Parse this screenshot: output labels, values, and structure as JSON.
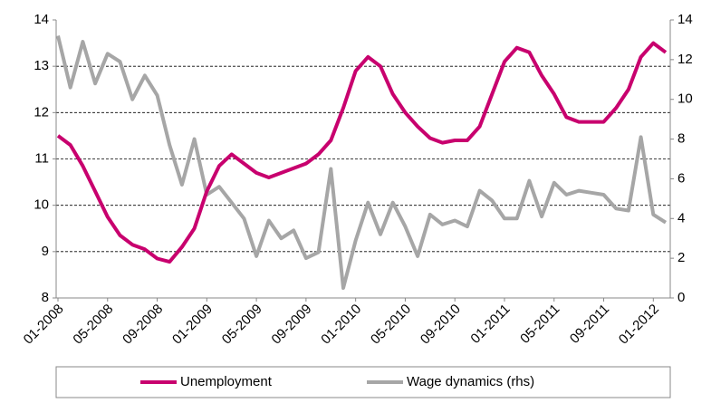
{
  "chart_data": {
    "type": "line",
    "categories": [
      "01-2008",
      null,
      null,
      null,
      "05-2008",
      null,
      null,
      null,
      "09-2008",
      null,
      null,
      null,
      "01-2009",
      null,
      null,
      null,
      "05-2009",
      null,
      null,
      null,
      "09-2009",
      null,
      null,
      null,
      "01-2010",
      null,
      null,
      null,
      "05-2010",
      null,
      null,
      null,
      "09-2010",
      null,
      null,
      null,
      "01-2011",
      null,
      null,
      null,
      "05-2011",
      null,
      null,
      null,
      "09-2011",
      null,
      null,
      null,
      "01-2012",
      null
    ],
    "series": [
      {
        "name": "Unemployment",
        "color": "#c8006e",
        "axis": "y",
        "values": [
          11.5,
          11.3,
          10.85,
          10.3,
          9.75,
          9.35,
          9.15,
          9.05,
          8.85,
          8.78,
          9.1,
          9.5,
          10.3,
          10.85,
          11.1,
          10.9,
          10.7,
          10.6,
          10.7,
          10.8,
          10.9,
          11.1,
          11.4,
          12.1,
          12.9,
          13.2,
          13.0,
          12.4,
          12.0,
          11.7,
          11.45,
          11.35,
          11.4,
          11.4,
          11.7,
          12.4,
          13.1,
          13.4,
          13.3,
          12.8,
          12.4,
          11.9,
          11.8,
          11.8,
          11.8,
          12.1,
          12.5,
          13.2,
          13.5,
          13.3
        ]
      },
      {
        "name": "Wage dynamics (rhs)",
        "color": "#a6a6a6",
        "axis": "y2",
        "values": [
          13.2,
          10.6,
          12.9,
          10.8,
          12.3,
          11.9,
          10.0,
          11.2,
          10.2,
          7.7,
          5.7,
          8.0,
          5.2,
          5.6,
          4.8,
          4.0,
          2.1,
          3.9,
          3.0,
          3.4,
          2.0,
          2.3,
          6.5,
          0.5,
          2.9,
          4.8,
          3.2,
          4.8,
          3.6,
          2.1,
          4.2,
          3.7,
          3.9,
          3.6,
          5.4,
          4.9,
          4.0,
          4.0,
          5.9,
          4.1,
          5.8,
          5.2,
          5.4,
          5.3,
          5.2,
          4.5,
          4.4,
          8.1,
          4.2,
          3.8
        ]
      }
    ],
    "ylim": [
      8,
      14
    ],
    "yticks": [
      8,
      9,
      10,
      11,
      12,
      13,
      14
    ],
    "y2lim": [
      0,
      14
    ],
    "y2ticks": [
      0,
      2,
      4,
      6,
      8,
      10,
      12,
      14
    ],
    "grid": true
  }
}
